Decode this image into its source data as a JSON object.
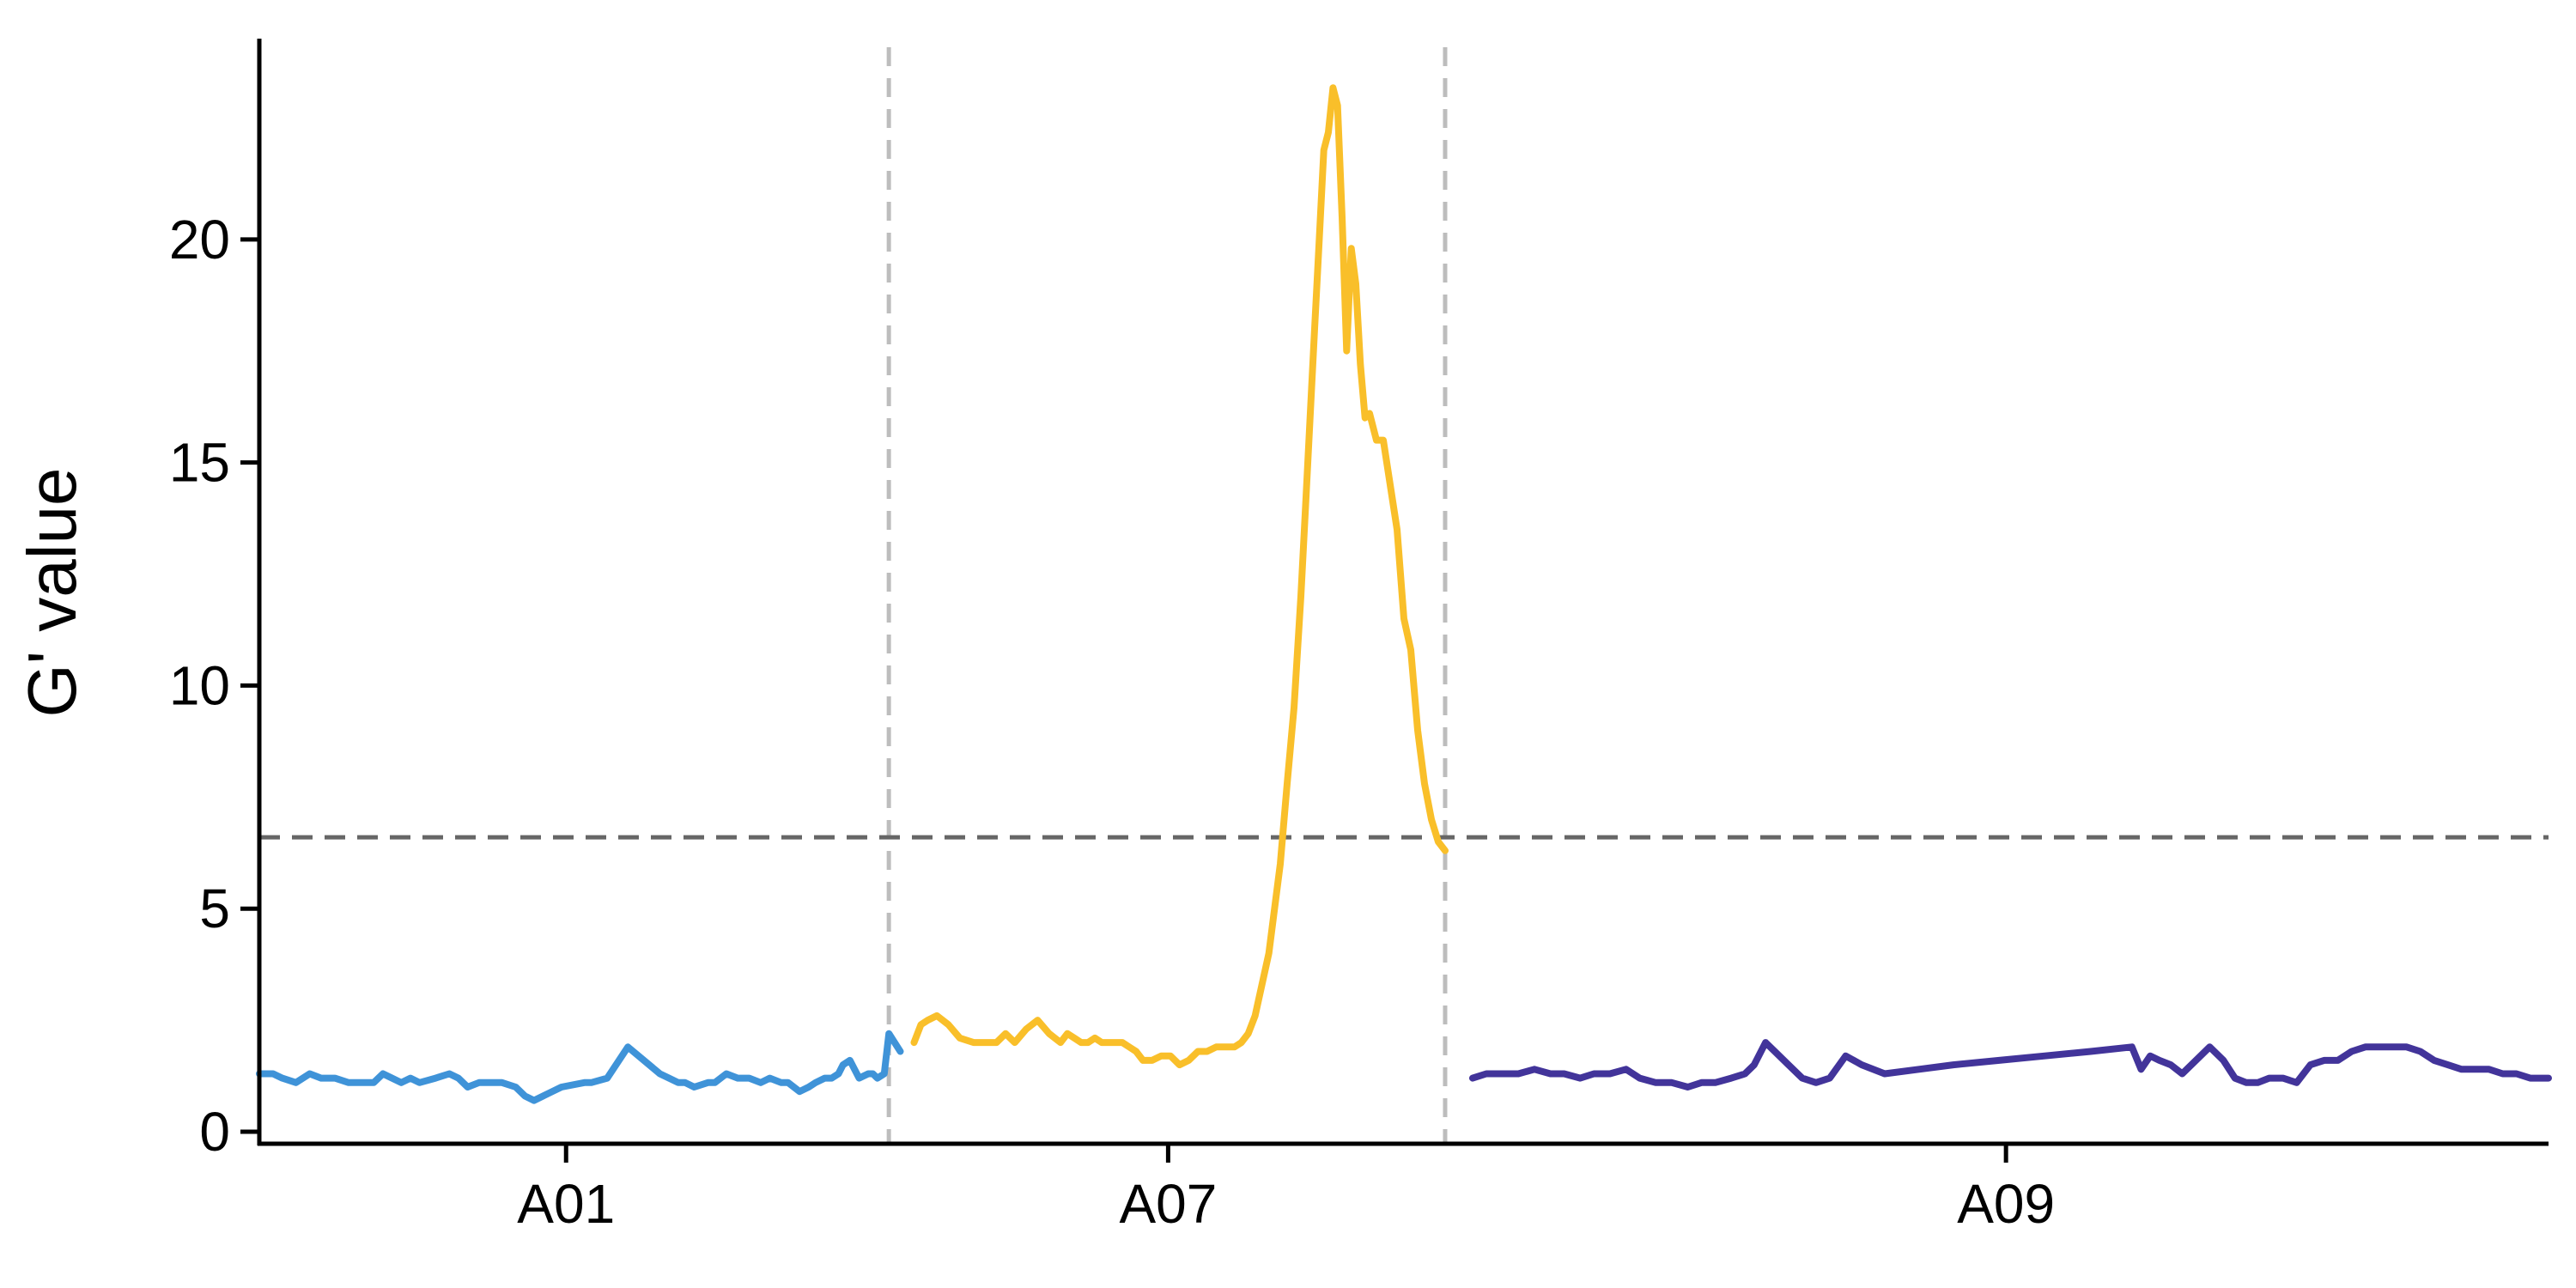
{
  "chart_data": {
    "type": "line",
    "title": "",
    "xlabel": "",
    "ylabel": "G' value",
    "ylim": [
      0,
      24.5
    ],
    "yticks": [
      0,
      5,
      10,
      15,
      20
    ],
    "threshold": 6.6,
    "grid": false,
    "legend": "none",
    "x_range": [
      0,
      100
    ],
    "xticks": [
      {
        "label": "A01",
        "x": 13.4
      },
      {
        "label": "A07",
        "x": 39.7
      },
      {
        "label": "A09",
        "x": 76.3
      }
    ],
    "chromosome_boundaries": [
      27.5,
      51.8
    ],
    "series": [
      {
        "color": "#3f93d8",
        "x": [
          0.0,
          0.6,
          1.0,
          1.6,
          2.2,
          2.7,
          3.3,
          3.9,
          4.3,
          5.0,
          5.4,
          5.8,
          6.2,
          6.6,
          7.0,
          7.7,
          8.3,
          8.7,
          9.1,
          9.6,
          10.2,
          10.6,
          11.2,
          11.6,
          12.0,
          12.4,
          12.8,
          13.2,
          14.2,
          14.5,
          15.2,
          16.1,
          17.5,
          17.9,
          18.3,
          18.6,
          19.0,
          19.6,
          19.9,
          20.4,
          20.9,
          21.4,
          21.9,
          22.3,
          22.8,
          23.1,
          23.6,
          24.0,
          24.3,
          24.7,
          25.0,
          25.3,
          25.5,
          25.8,
          26.0,
          26.2,
          26.6,
          26.8,
          27.0,
          27.3,
          27.5,
          28.0
        ],
        "y": [
          1.3,
          1.3,
          1.2,
          1.1,
          1.3,
          1.2,
          1.2,
          1.1,
          1.1,
          1.1,
          1.3,
          1.2,
          1.1,
          1.2,
          1.1,
          1.2,
          1.3,
          1.2,
          1.0,
          1.1,
          1.1,
          1.1,
          1.0,
          0.8,
          0.7,
          0.8,
          0.9,
          1.0,
          1.1,
          1.1,
          1.2,
          1.9,
          1.3,
          1.2,
          1.1,
          1.1,
          1.0,
          1.1,
          1.1,
          1.3,
          1.2,
          1.2,
          1.1,
          1.2,
          1.1,
          1.1,
          0.9,
          1.0,
          1.1,
          1.2,
          1.2,
          1.3,
          1.5,
          1.6,
          1.4,
          1.2,
          1.3,
          1.3,
          1.2,
          1.3,
          2.2,
          1.8
        ]
      },
      {
        "color": "#f9bf2a",
        "x": [
          28.6,
          28.9,
          29.2,
          29.6,
          30.1,
          30.6,
          31.2,
          31.8,
          32.2,
          32.6,
          33.0,
          33.5,
          34.0,
          34.5,
          35.0,
          35.3,
          35.6,
          35.9,
          36.2,
          36.5,
          36.8,
          37.1,
          37.4,
          37.7,
          38.0,
          38.3,
          38.6,
          39.0,
          39.4,
          39.8,
          40.2,
          40.6,
          41.0,
          41.4,
          41.8,
          42.2,
          42.6,
          42.9,
          43.2,
          43.5,
          43.8,
          44.1,
          44.3,
          44.6,
          44.9,
          45.2,
          45.5,
          45.7,
          45.9,
          46.1,
          46.3,
          46.5,
          46.7,
          46.9,
          47.1,
          47.3,
          47.5,
          47.7,
          47.9,
          48.1,
          48.3,
          48.5,
          48.8,
          49.1,
          49.4,
          49.7,
          50.0,
          50.3,
          50.6,
          50.9,
          51.2,
          51.5,
          51.8
        ],
        "y": [
          2.0,
          2.4,
          2.5,
          2.6,
          2.4,
          2.1,
          2.0,
          2.0,
          2.0,
          2.2,
          2.0,
          2.3,
          2.5,
          2.2,
          2.0,
          2.2,
          2.1,
          2.0,
          2.0,
          2.1,
          2.0,
          2.0,
          2.0,
          2.0,
          1.9,
          1.8,
          1.6,
          1.6,
          1.7,
          1.7,
          1.5,
          1.6,
          1.8,
          1.8,
          1.9,
          1.9,
          1.9,
          2.0,
          2.2,
          2.6,
          3.3,
          4.0,
          4.8,
          6.0,
          7.8,
          9.5,
          12.0,
          14.0,
          16.0,
          18.0,
          20.0,
          22.0,
          22.4,
          23.4,
          23.0,
          20.5,
          17.5,
          19.8,
          19.0,
          17.2,
          16.0,
          16.1,
          15.5,
          15.5,
          14.5,
          13.5,
          11.5,
          10.8,
          9.0,
          7.8,
          7.0,
          6.5,
          6.3
        ]
      },
      {
        "color": "#42349a",
        "x": [
          53.0,
          53.6,
          54.3,
          55.0,
          55.7,
          56.4,
          57.0,
          57.7,
          58.3,
          59.0,
          59.7,
          60.3,
          61.0,
          61.7,
          62.4,
          63.0,
          63.6,
          64.3,
          64.9,
          65.3,
          65.8,
          66.2,
          66.8,
          67.4,
          68.0,
          68.6,
          69.3,
          70.0,
          71.0,
          72.5,
          74.0,
          76.0,
          78.0,
          80.0,
          81.8,
          82.2,
          82.6,
          83.0,
          83.5,
          84.0,
          84.6,
          85.2,
          85.8,
          86.3,
          86.8,
          87.3,
          87.8,
          88.4,
          89.0,
          89.6,
          90.2,
          90.8,
          91.4,
          92.0,
          92.6,
          93.2,
          93.8,
          94.4,
          95.0,
          95.6,
          96.2,
          96.8,
          97.4,
          98.0,
          98.6,
          99.2,
          100.0
        ],
        "y": [
          1.2,
          1.3,
          1.3,
          1.3,
          1.4,
          1.3,
          1.3,
          1.2,
          1.3,
          1.3,
          1.4,
          1.2,
          1.1,
          1.1,
          1.0,
          1.1,
          1.1,
          1.2,
          1.3,
          1.5,
          2.0,
          1.8,
          1.5,
          1.2,
          1.1,
          1.2,
          1.7,
          1.5,
          1.3,
          1.4,
          1.5,
          1.6,
          1.7,
          1.8,
          1.9,
          1.4,
          1.7,
          1.6,
          1.5,
          1.3,
          1.6,
          1.9,
          1.6,
          1.2,
          1.1,
          1.1,
          1.2,
          1.2,
          1.1,
          1.5,
          1.6,
          1.6,
          1.8,
          1.9,
          1.9,
          1.9,
          1.9,
          1.8,
          1.6,
          1.5,
          1.4,
          1.4,
          1.4,
          1.3,
          1.3,
          1.2,
          1.2
        ]
      }
    ],
    "colors": {
      "threshold_line": "#666666",
      "boundary_line": "#bdbdbd",
      "axis": "#000000"
    }
  }
}
